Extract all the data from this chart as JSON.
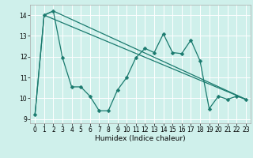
{
  "title": "",
  "xlabel": "Humidex (Indice chaleur)",
  "xlim": [
    -0.5,
    23.5
  ],
  "ylim": [
    8.8,
    14.5
  ],
  "yticks": [
    9,
    10,
    11,
    12,
    13,
    14
  ],
  "xticks": [
    0,
    1,
    2,
    3,
    4,
    5,
    6,
    7,
    8,
    9,
    10,
    11,
    12,
    13,
    14,
    15,
    16,
    17,
    18,
    19,
    20,
    21,
    22,
    23
  ],
  "bg_color": "#cff0eb",
  "grid_color": "#ffffff",
  "line_color": "#1a7a6e",
  "line1_x": [
    0,
    1,
    2,
    3,
    4,
    5,
    6,
    7,
    8,
    9,
    10,
    11,
    12,
    13,
    14,
    15,
    16,
    17,
    18,
    19,
    20,
    21,
    22,
    23
  ],
  "line1_y": [
    9.2,
    14.0,
    14.2,
    11.95,
    10.55,
    10.55,
    10.1,
    9.4,
    9.4,
    10.4,
    11.0,
    11.95,
    12.4,
    12.2,
    13.1,
    12.2,
    12.15,
    12.8,
    11.8,
    9.5,
    10.1,
    9.95,
    10.1,
    9.95
  ],
  "line2_x": [
    0,
    1,
    2,
    23
  ],
  "line2_y": [
    9.2,
    14.0,
    14.2,
    9.95
  ],
  "line3_x": [
    1,
    23
  ],
  "line3_y": [
    14.0,
    9.95
  ],
  "markersize": 2.5,
  "linewidth": 0.9,
  "tick_fontsize": 5.5,
  "xlabel_fontsize": 6.5
}
